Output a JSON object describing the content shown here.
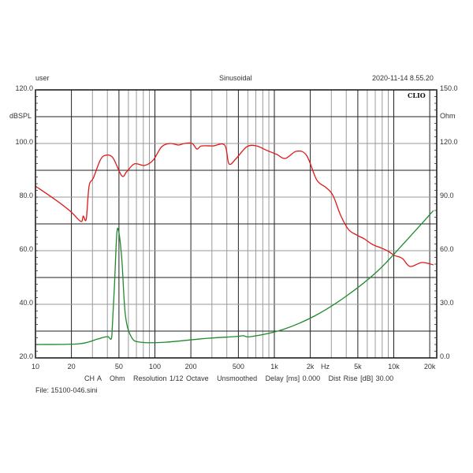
{
  "header": {
    "user": "user",
    "mode": "Sinusoidal",
    "timestamp": "2020-11-14 8.55.20",
    "brand": "CLIO"
  },
  "footer": {
    "info": "CH A   Ohm   Resolution 1/12 Octave   Unsmoothed   Delay [ms] 0.000   Dist Rise [dB] 30.00",
    "file": "File: 15100-046.sini"
  },
  "axes": {
    "left_unit": "dBSPL",
    "right_unit": "Ohm",
    "x_unit": "Hz",
    "left_ticks": [
      "120.0",
      "100.0",
      "80.0",
      "60.0",
      "40.0",
      "20.0"
    ],
    "right_ticks": [
      "150.0",
      "120.0",
      "90.0",
      "60.0",
      "30.0",
      "0.0"
    ],
    "x_ticks": [
      "10",
      "20",
      "50",
      "100",
      "200",
      "500",
      "1k",
      "2k",
      "5k",
      "10k",
      "20k"
    ]
  },
  "colors": {
    "spl": "#e01818",
    "impedance": "#1f8a2a",
    "grid_major": "#222222",
    "grid_minor": "#9a9a9a"
  },
  "chart_data": {
    "type": "line",
    "title": "Sinusoidal",
    "xlabel": "Hz",
    "ylabel": "dBSPL",
    "y2label": "Ohm",
    "xscale": "log",
    "xlim": [
      10,
      22000
    ],
    "ylim": [
      20,
      120
    ],
    "y2lim": [
      0,
      150
    ],
    "grid": true,
    "x_ticks": [
      10,
      20,
      50,
      100,
      200,
      500,
      1000,
      2000,
      5000,
      10000,
      20000
    ],
    "series": [
      {
        "name": "SPL",
        "axis": "left",
        "unit": "dBSPL",
        "color": "#e01818",
        "x": [
          10,
          14.6,
          19.6,
          24.0,
          25.1,
          26.6,
          28.1,
          30.5,
          34.9,
          38.6,
          44.4,
          52.8,
          57.9,
          67.5,
          82.0,
          96.9,
          114,
          135,
          157,
          177,
          205,
          225,
          245,
          305,
          384,
          417,
          479,
          589,
          710,
          866,
          1050,
          1235,
          1530,
          1860,
          2260,
          2720,
          3100,
          3590,
          4180,
          4870,
          5660,
          6580,
          7650,
          8810,
          10200,
          11800,
          13700,
          17200,
          21500
        ],
        "values": [
          84.1,
          79.1,
          74.7,
          70.9,
          72.9,
          71.8,
          84.1,
          87.1,
          93.8,
          95.6,
          94.7,
          87.9,
          89.4,
          92.4,
          91.8,
          93.8,
          98.8,
          100.0,
          99.4,
          100.0,
          100.0,
          97.9,
          99.1,
          99.1,
          99.4,
          92.4,
          94.4,
          98.8,
          99.1,
          97.4,
          95.9,
          94.4,
          97.1,
          95.6,
          86.5,
          83.5,
          80.6,
          73.2,
          67.9,
          65.9,
          64.4,
          62.4,
          61.2,
          60.0,
          58.2,
          57.1,
          54.1,
          55.6,
          54.7
        ]
      },
      {
        "name": "Impedance",
        "axis": "right",
        "unit": "Ohm",
        "color": "#1f8a2a",
        "x": [
          10,
          23.1,
          33.2,
          40.0,
          43.1,
          44.0,
          45.9,
          48.0,
          50.0,
          52.9,
          56.6,
          63.8,
          76.2,
          123,
          276,
          464,
          548,
          640,
          1180,
          2160,
          3970,
          7290,
          11900,
          21500
        ],
        "values": [
          7.5,
          7.9,
          10.6,
          11.9,
          10.6,
          17.6,
          41.5,
          69.7,
          70.0,
          54.7,
          23.8,
          11.5,
          8.8,
          8.8,
          11.0,
          11.9,
          12.4,
          11.9,
          15.9,
          23.4,
          34.4,
          48.5,
          63.5,
          82.5
        ]
      }
    ]
  }
}
